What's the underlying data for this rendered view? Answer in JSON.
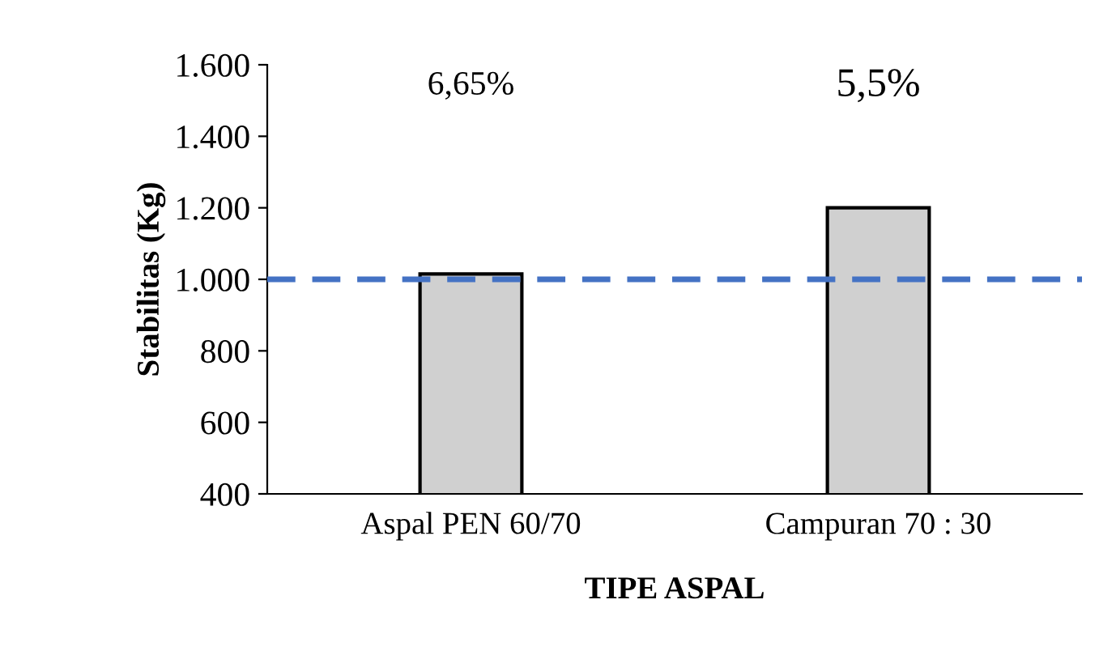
{
  "chart_data": {
    "type": "bar",
    "xlabel": "TIPE ASPAL",
    "ylabel": "Stabilitas (Kg)",
    "categories": [
      "Aspal PEN 60/70",
      "Campuran 70 : 30"
    ],
    "values": [
      1015,
      1200
    ],
    "color": "#d0d0d0",
    "ylim": [
      400,
      1600
    ],
    "yticks": [
      {
        "value": 400,
        "label": "400"
      },
      {
        "value": 600,
        "label": "600"
      },
      {
        "value": 800,
        "label": "800"
      },
      {
        "value": 1000,
        "label": "1.000"
      },
      {
        "value": 1200,
        "label": "1.200"
      },
      {
        "value": 1400,
        "label": "1.400"
      },
      {
        "value": 1600,
        "label": "1.600"
      }
    ],
    "annotations": [
      "6,65%",
      "5,5%"
    ],
    "ref_lines": [
      {
        "axis": "y",
        "value": 1000,
        "color": "#4472c4",
        "line_style": "dashed"
      }
    ],
    "grid": false,
    "legend": false
  }
}
